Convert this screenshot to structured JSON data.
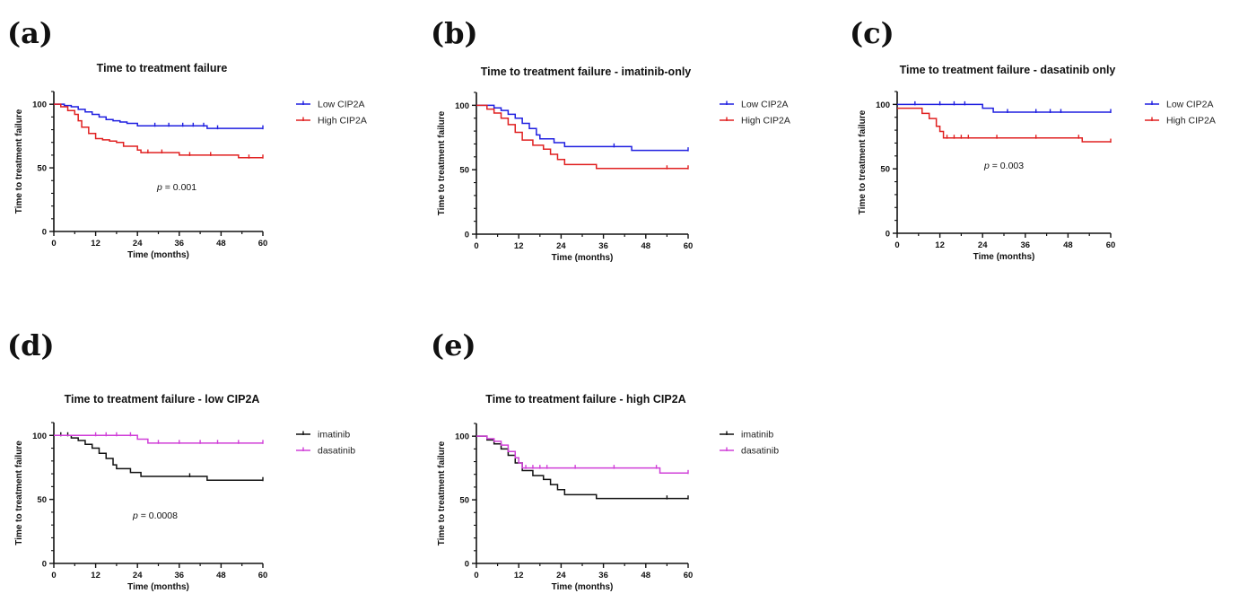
{
  "chart_data": [
    {
      "panel": "(a)",
      "type": "line",
      "title": "Time to treatment failure",
      "xlabel": "Time (months)",
      "ylabel": "Time to treatment failure",
      "xlim": [
        0,
        60
      ],
      "ylim": [
        0,
        110
      ],
      "xticks": [
        0,
        12,
        24,
        36,
        48,
        60
      ],
      "yticks": [
        0,
        50,
        100
      ],
      "annotation": {
        "prefix": "p",
        "text": " = 0.001"
      },
      "legend_position": "right",
      "series": [
        {
          "name": "Low CIP2A",
          "color": "#1f1fe0",
          "x": [
            0,
            3,
            5,
            7,
            9,
            11,
            13,
            15,
            17,
            19,
            21,
            24,
            44,
            60
          ],
          "y": [
            100,
            99,
            98,
            96,
            94,
            92,
            90,
            88,
            87,
            86,
            85,
            83,
            81,
            81
          ],
          "censor_x": [
            29,
            33,
            37,
            40,
            43,
            47,
            60
          ]
        },
        {
          "name": "High CIP2A",
          "color": "#e02020",
          "x": [
            0,
            2,
            4,
            6,
            7,
            8,
            10,
            12,
            14,
            16,
            18,
            20,
            24,
            25,
            36,
            53,
            60
          ],
          "y": [
            100,
            98,
            95,
            92,
            87,
            82,
            77,
            73,
            72,
            71,
            70,
            67,
            64,
            62,
            60,
            58,
            58
          ],
          "censor_x": [
            27,
            31,
            39,
            45,
            56,
            60
          ]
        }
      ]
    },
    {
      "panel": "(b)",
      "type": "line",
      "title": "Time to treatment failure - imatinib-only",
      "xlabel": "Time (months)",
      "ylabel": "Time to treatment failure",
      "xlim": [
        0,
        60
      ],
      "ylim": [
        0,
        110
      ],
      "xticks": [
        0,
        12,
        24,
        36,
        48,
        60
      ],
      "yticks": [
        0,
        50,
        100
      ],
      "legend_position": "right",
      "series": [
        {
          "name": "Low CIP2A",
          "color": "#1f1fe0",
          "x": [
            0,
            5,
            7,
            9,
            11,
            13,
            15,
            17,
            18,
            22,
            25,
            44,
            60
          ],
          "y": [
            100,
            98,
            96,
            93,
            90,
            86,
            82,
            77,
            74,
            71,
            68,
            65,
            65
          ],
          "censor_x": [
            39,
            60
          ]
        },
        {
          "name": "High CIP2A",
          "color": "#e02020",
          "x": [
            0,
            3,
            5,
            7,
            9,
            11,
            13,
            16,
            19,
            21,
            23,
            25,
            34,
            60
          ],
          "y": [
            100,
            97,
            94,
            90,
            85,
            79,
            73,
            69,
            66,
            62,
            58,
            54,
            51,
            51
          ],
          "censor_x": [
            54,
            60
          ]
        }
      ]
    },
    {
      "panel": "(c)",
      "type": "line",
      "title": "Time to treatment failure - dasatinib only",
      "xlabel": "Time (months)",
      "ylabel": "Time to treatment failure",
      "xlim": [
        0,
        60
      ],
      "ylim": [
        0,
        110
      ],
      "xticks": [
        0,
        12,
        24,
        36,
        48,
        60
      ],
      "yticks": [
        0,
        50,
        100
      ],
      "annotation": {
        "prefix": "p",
        "text": " = 0.003"
      },
      "legend_position": "right",
      "series": [
        {
          "name": "Low CIP2A",
          "color": "#1f1fe0",
          "x": [
            0,
            24,
            27,
            60
          ],
          "y": [
            100,
            97,
            94,
            94
          ],
          "censor_x": [
            5,
            12,
            16,
            19,
            31,
            39,
            43,
            46,
            60
          ]
        },
        {
          "name": "High CIP2A",
          "color": "#e02020",
          "x": [
            0,
            7,
            9,
            11,
            12,
            13,
            52,
            60
          ],
          "y": [
            97,
            93,
            89,
            83,
            79,
            74,
            71,
            71
          ],
          "censor_x": [
            14,
            16,
            18,
            20,
            28,
            39,
            51,
            60
          ]
        }
      ]
    },
    {
      "panel": "(d)",
      "type": "line",
      "title": "Time to treatment failure - low CIP2A",
      "xlabel": "Time (months)",
      "ylabel": "Time to treatment failure",
      "xlim": [
        0,
        60
      ],
      "ylim": [
        0,
        110
      ],
      "xticks": [
        0,
        12,
        24,
        36,
        48,
        60
      ],
      "yticks": [
        0,
        50,
        100
      ],
      "annotation": {
        "prefix": "p",
        "text": " = 0.0008"
      },
      "legend_position": "right",
      "series": [
        {
          "name": "imatinib",
          "color": "#111111",
          "x": [
            0,
            5,
            7,
            9,
            11,
            13,
            15,
            17,
            18,
            22,
            25,
            44,
            60
          ],
          "y": [
            100,
            98,
            96,
            93,
            90,
            86,
            82,
            77,
            74,
            71,
            68,
            65,
            65
          ],
          "censor_x": [
            2,
            4,
            39,
            60
          ]
        },
        {
          "name": "dasatinib",
          "color": "#d040d8",
          "x": [
            0,
            24,
            27,
            60
          ],
          "y": [
            100,
            97,
            94,
            94
          ],
          "censor_x": [
            12,
            15,
            18,
            22,
            30,
            36,
            42,
            47,
            53,
            60
          ]
        }
      ]
    },
    {
      "panel": "(e)",
      "type": "line",
      "title": "Time to treatment failure - high CIP2A",
      "xlabel": "Time (months)",
      "ylabel": "Time to treatment failure",
      "xlim": [
        0,
        60
      ],
      "ylim": [
        0,
        110
      ],
      "xticks": [
        0,
        12,
        24,
        36,
        48,
        60
      ],
      "yticks": [
        0,
        50,
        100
      ],
      "legend_position": "right",
      "series": [
        {
          "name": "imatinib",
          "color": "#111111",
          "x": [
            0,
            3,
            5,
            7,
            9,
            11,
            13,
            16,
            19,
            21,
            23,
            25,
            34,
            60
          ],
          "y": [
            100,
            97,
            94,
            90,
            85,
            79,
            73,
            69,
            66,
            62,
            58,
            54,
            51,
            51
          ],
          "censor_x": [
            54,
            60
          ]
        },
        {
          "name": "dasatinib",
          "color": "#d040d8",
          "x": [
            0,
            3,
            5,
            7,
            9,
            11,
            12,
            13,
            52,
            60
          ],
          "y": [
            100,
            98,
            96,
            93,
            88,
            83,
            79,
            75,
            71,
            71
          ],
          "censor_x": [
            14,
            16,
            18,
            20,
            28,
            39,
            51,
            60
          ]
        }
      ]
    }
  ]
}
